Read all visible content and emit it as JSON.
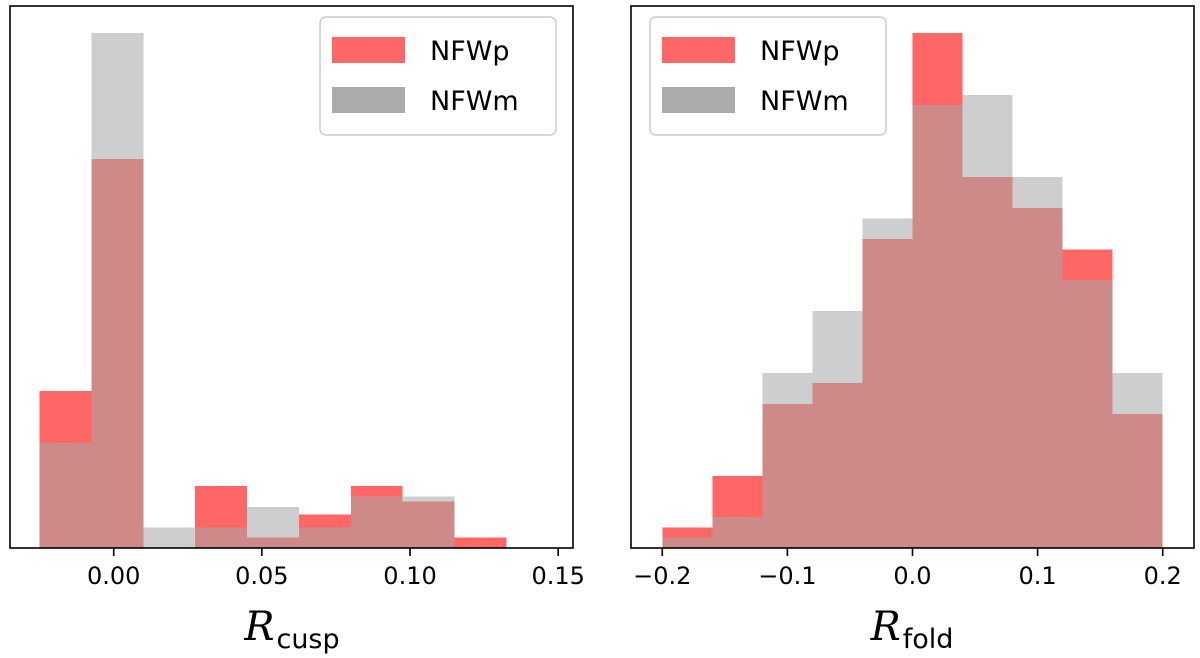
{
  "chart_data": [
    {
      "type": "bar",
      "xlabel": "R",
      "xlabel_sub": "cusp",
      "xlim": [
        -0.035,
        0.155
      ],
      "xticks": [
        0.0,
        0.05,
        0.1,
        0.15
      ],
      "xtick_labels": [
        "0.00",
        "0.05",
        "0.10",
        "0.15"
      ],
      "ylim": [
        0,
        1.0
      ],
      "yticks_visible": false,
      "legend_position": "top-right",
      "bin_edges": [
        -0.025,
        -0.0075,
        0.01,
        0.0275,
        0.045,
        0.0625,
        0.08,
        0.0975,
        0.115,
        0.1325,
        0.15
      ],
      "series": [
        {
          "name": "NFWp",
          "color": "#ff6666",
          "values": [
            0.305,
            0.755,
            0.0,
            0.12,
            0.02,
            0.065,
            0.12,
            0.09,
            0.02,
            0.0
          ]
        },
        {
          "name": "NFWm",
          "color": "#a6a6a6",
          "values": [
            0.205,
            1.0,
            0.04,
            0.04,
            0.08,
            0.04,
            0.1,
            0.1,
            0.0,
            0.0
          ]
        }
      ]
    },
    {
      "type": "bar",
      "xlabel": "R",
      "xlabel_sub": "fold",
      "xlim": [
        -0.225,
        0.225
      ],
      "xticks": [
        -0.2,
        -0.1,
        0.0,
        0.1,
        0.2
      ],
      "xtick_labels": [
        "−0.2",
        "−0.1",
        "0.0",
        "0.1",
        "0.2"
      ],
      "ylim": [
        0,
        1.0
      ],
      "yticks_visible": false,
      "legend_position": "top-left",
      "bin_edges": [
        -0.2,
        -0.16,
        -0.12,
        -0.08,
        -0.04,
        0.0,
        0.04,
        0.08,
        0.12,
        0.16,
        0.2
      ],
      "series": [
        {
          "name": "NFWp",
          "color": "#ff6666",
          "values": [
            0.04,
            0.14,
            0.28,
            0.32,
            0.6,
            1.0,
            0.72,
            0.66,
            0.58,
            0.26
          ]
        },
        {
          "name": "NFWm",
          "color": "#a6a6a6",
          "values": [
            0.02,
            0.06,
            0.34,
            0.46,
            0.64,
            0.86,
            0.88,
            0.72,
            0.52,
            0.34
          ]
        }
      ]
    }
  ]
}
